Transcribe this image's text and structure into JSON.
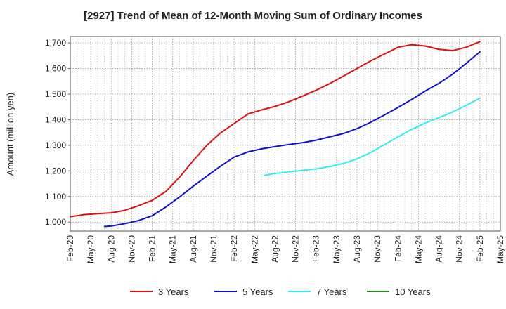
{
  "chart_data": {
    "type": "line",
    "title": "[2927]  Trend of Mean of 12-Month Moving Sum of Ordinary Incomes",
    "xlabel": "",
    "ylabel": "Amount (million yen)",
    "ylim": [
      965,
      1725
    ],
    "yticks": [
      1000,
      1100,
      1200,
      1300,
      1400,
      1500,
      1600,
      1700
    ],
    "ytick_labels": [
      "1,000",
      "1,100",
      "1,200",
      "1,300",
      "1,400",
      "1,500",
      "1,600",
      "1,700"
    ],
    "x_categories": [
      "Feb-20",
      "May-20",
      "Aug-20",
      "Nov-20",
      "Feb-21",
      "May-21",
      "Aug-21",
      "Nov-21",
      "Feb-22",
      "May-22",
      "Aug-22",
      "Nov-22",
      "Feb-23",
      "May-23",
      "Aug-23",
      "Nov-23",
      "Feb-24",
      "May-24",
      "Aug-24",
      "Nov-24",
      "Feb-25",
      "May-25"
    ],
    "x_unit": "quarter index (0 = Feb-20, 21 = May-25)",
    "grid": true,
    "legend_position": "bottom",
    "series": [
      {
        "name": "3 Years",
        "color": "#dd1111",
        "x": [
          0,
          0.67,
          1.33,
          2,
          2.67,
          3.33,
          4,
          4.67,
          5.33,
          6,
          6.67,
          7.33,
          8,
          8.67,
          9.33,
          10,
          10.67,
          11.33,
          12,
          12.67,
          13.33,
          14,
          14.67,
          15.33,
          16,
          16.67,
          17.33,
          18,
          18.67,
          19.33,
          20
        ],
        "values": [
          1021,
          1029,
          1033,
          1036,
          1046,
          1064,
          1085,
          1120,
          1175,
          1240,
          1300,
          1348,
          1385,
          1422,
          1438,
          1452,
          1470,
          1492,
          1515,
          1541,
          1570,
          1600,
          1630,
          1656,
          1683,
          1693,
          1688,
          1675,
          1670,
          1683,
          1705
        ]
      },
      {
        "name": "5 Years",
        "color": "#1111cc",
        "x": [
          1.67,
          2,
          2.67,
          3.33,
          4,
          4.67,
          5.33,
          6,
          6.67,
          7.33,
          8,
          8.67,
          9.33,
          10,
          10.67,
          11.33,
          12,
          12.67,
          13.33,
          14,
          14.67,
          15.33,
          16,
          16.67,
          17.33,
          18,
          18.67,
          19.33,
          20
        ],
        "values": [
          983,
          985,
          994,
          1006,
          1025,
          1059,
          1098,
          1140,
          1180,
          1218,
          1254,
          1274,
          1286,
          1295,
          1303,
          1310,
          1320,
          1333,
          1346,
          1365,
          1390,
          1418,
          1448,
          1479,
          1512,
          1542,
          1578,
          1620,
          1665
        ]
      },
      {
        "name": "7 Years",
        "color": "#33eeee",
        "x": [
          9.5,
          10,
          10.67,
          11.33,
          12,
          12.67,
          13.33,
          14,
          14.67,
          15.33,
          16,
          16.67,
          17.33,
          18,
          18.67,
          19.33,
          20
        ],
        "values": [
          1183,
          1190,
          1196,
          1202,
          1208,
          1217,
          1229,
          1247,
          1272,
          1302,
          1333,
          1362,
          1387,
          1408,
          1430,
          1456,
          1484
        ]
      },
      {
        "name": "10 Years",
        "color": "#228822",
        "x": [],
        "values": []
      }
    ]
  }
}
